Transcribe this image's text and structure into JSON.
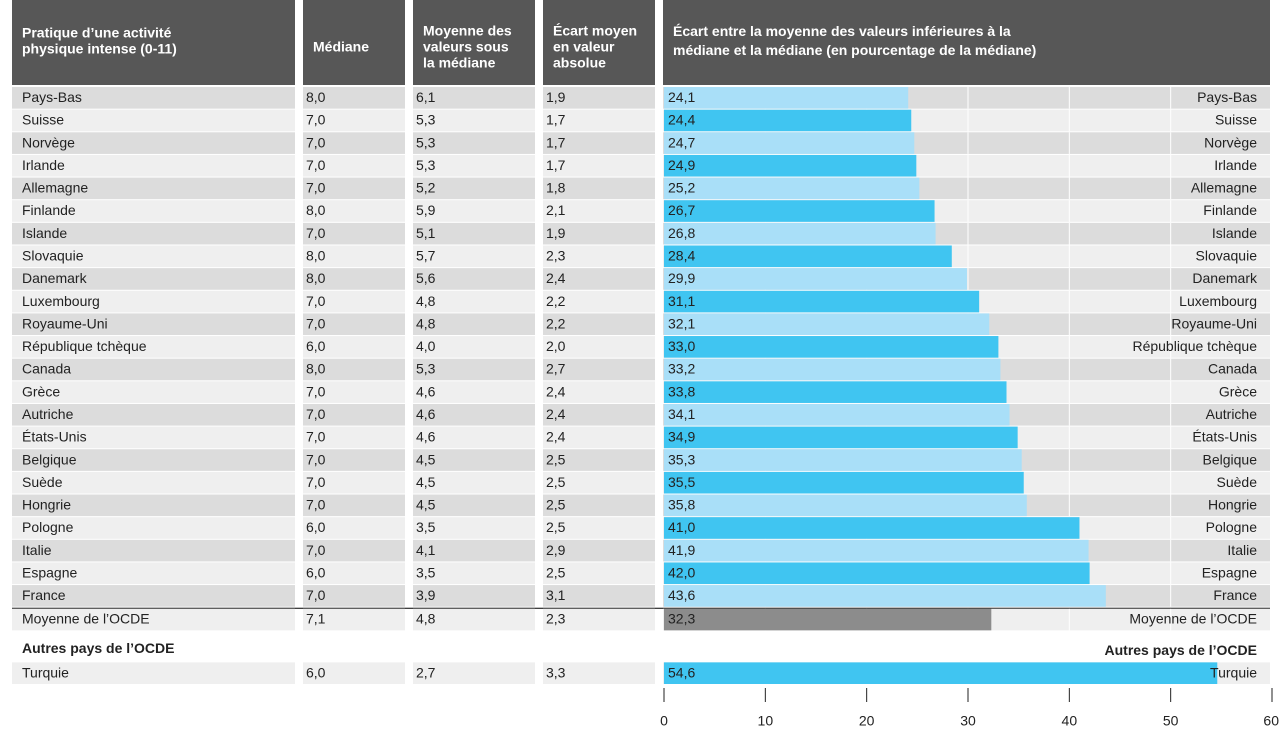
{
  "table": {
    "headers": [
      [
        "Pratique d’une activité",
        "physique intense (0-11)"
      ],
      [
        "Médiane"
      ],
      [
        "Moyenne des",
        "valeurs sous",
        "la médiane"
      ],
      [
        "Écart moyen",
        "en valeur",
        "absolue"
      ]
    ],
    "rows": [
      [
        "8,0",
        "6,1",
        "1,9"
      ],
      [
        "7,0",
        "5,3",
        "1,7"
      ],
      [
        "7,0",
        "5,3",
        "1,7"
      ],
      [
        "7,0",
        "5,3",
        "1,7"
      ],
      [
        "7,0",
        "5,2",
        "1,8"
      ],
      [
        "8,0",
        "5,9",
        "2,1"
      ],
      [
        "7,0",
        "5,1",
        "1,9"
      ],
      [
        "8,0",
        "5,7",
        "2,3"
      ],
      [
        "8,0",
        "5,6",
        "2,4"
      ],
      [
        "7,0",
        "4,8",
        "2,2"
      ],
      [
        "7,0",
        "4,8",
        "2,2"
      ],
      [
        "6,0",
        "4,0",
        "2,0"
      ],
      [
        "8,0",
        "5,3",
        "2,7"
      ],
      [
        "7,0",
        "4,6",
        "2,4"
      ],
      [
        "7,0",
        "4,6",
        "2,4"
      ],
      [
        "7,0",
        "4,6",
        "2,4"
      ],
      [
        "7,0",
        "4,5",
        "2,5"
      ],
      [
        "7,0",
        "4,5",
        "2,5"
      ],
      [
        "7,0",
        "4,5",
        "2,5"
      ],
      [
        "6,0",
        "3,5",
        "2,5"
      ],
      [
        "7,0",
        "4,1",
        "2,9"
      ],
      [
        "6,0",
        "3,5",
        "2,5"
      ],
      [
        "7,0",
        "3,9",
        "3,1"
      ]
    ],
    "average_row": [
      "7,1",
      "4,8",
      "2,3"
    ],
    "other_rows": [
      [
        "6,0",
        "2,7",
        "3,3"
      ]
    ]
  },
  "chart_data": {
    "type": "bar",
    "orientation": "horizontal",
    "title": [
      "Écart entre la moyenne des valeurs inférieures à la",
      "médiane et la médiane (en pourcentage de la médiane)"
    ],
    "categories": [
      "Pays-Bas",
      "Suisse",
      "Norvège",
      "Irlande",
      "Allemagne",
      "Finlande",
      "Islande",
      "Slovaquie",
      "Danemark",
      "Luxembourg",
      "Royaume-Uni",
      "République tchèque",
      "Canada",
      "Grèce",
      "Autriche",
      "États-Unis",
      "Belgique",
      "Suède",
      "Hongrie",
      "Pologne",
      "Italie",
      "Espagne",
      "France"
    ],
    "values": [
      24.1,
      24.4,
      24.7,
      24.9,
      25.2,
      26.7,
      26.8,
      28.4,
      29.9,
      31.1,
      32.1,
      33.0,
      33.2,
      33.8,
      34.1,
      34.9,
      35.3,
      35.5,
      35.8,
      41.0,
      41.9,
      42.0,
      43.6
    ],
    "value_labels": [
      "24,1",
      "24,4",
      "24,7",
      "24,9",
      "25,2",
      "26,7",
      "26,8",
      "28,4",
      "29,9",
      "31,1",
      "32,1",
      "33,0",
      "33,2",
      "33,8",
      "34,1",
      "34,9",
      "35,3",
      "35,5",
      "35,8",
      "41,0",
      "41,9",
      "42,0",
      "43,6"
    ],
    "colors": [
      "#a9dff8",
      "#40c5f1"
    ],
    "average": {
      "category": "Moyenne de l’OCDE",
      "value": 32.3,
      "value_label": "32,3",
      "color": "#8c8c8c"
    },
    "other_heading": "Autres pays de l’OCDE",
    "other": {
      "categories": [
        "Turquie"
      ],
      "values": [
        54.6
      ],
      "value_labels": [
        "54,6"
      ],
      "color": "#40c5f1"
    },
    "xlim": [
      0,
      60
    ],
    "xticks": [
      0,
      10,
      20,
      30,
      40,
      50,
      60
    ],
    "grid": true
  }
}
